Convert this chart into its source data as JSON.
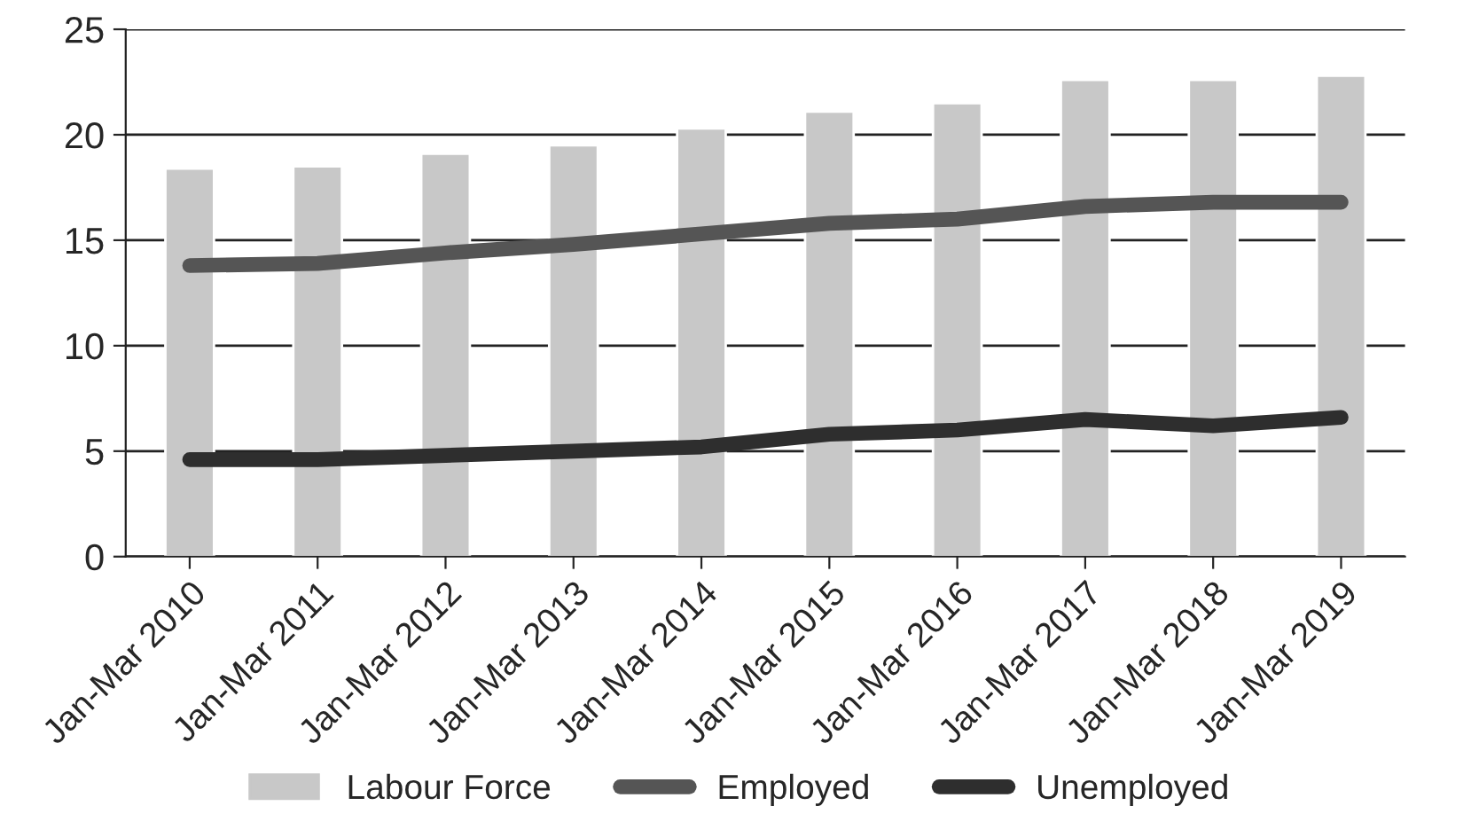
{
  "chart_data": {
    "type": "bar",
    "categories": [
      "Jan-Mar 2010",
      "Jan-Mar 2011",
      "Jan-Mar 2012",
      "Jan-Mar 2013",
      "Jan-Mar 2014",
      "Jan-Mar 2015",
      "Jan-Mar 2016",
      "Jan-Mar 2017",
      "Jan-Mar 2018",
      "Jan-Mar 2019"
    ],
    "series": [
      {
        "name": "Labour Force",
        "color": "#c8c8c8",
        "values": [
          18.4,
          18.5,
          19.1,
          19.5,
          20.3,
          21.1,
          21.5,
          22.6,
          22.6,
          22.8
        ]
      },
      {
        "name": "Employed",
        "type": "line",
        "color": "#555555",
        "values": [
          13.8,
          13.9,
          14.4,
          14.8,
          15.3,
          15.8,
          16.0,
          16.6,
          16.8,
          16.8
        ]
      },
      {
        "name": "Unemployed",
        "type": "line",
        "color": "#2e2e2e",
        "values": [
          4.6,
          4.6,
          4.8,
          5.0,
          5.2,
          5.8,
          6.0,
          6.5,
          6.2,
          6.6
        ]
      }
    ],
    "ylim": [
      0,
      25
    ],
    "yticks": [
      0,
      5,
      10,
      15,
      20,
      25
    ],
    "grid": "y",
    "legend": "bottom",
    "marker": "none",
    "line_style": "solid"
  }
}
